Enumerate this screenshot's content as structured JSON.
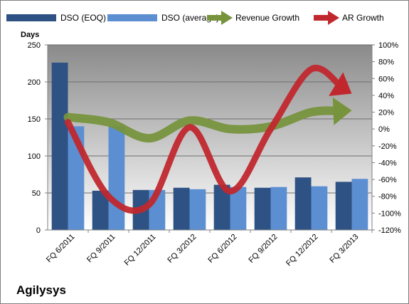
{
  "chart_data": {
    "type": "bar",
    "company": "Agilysys",
    "left_axis_title": "Days",
    "categories": [
      "FQ 6/2011",
      "FQ 9/2011",
      "FQ 12/2011",
      "FQ 3/2012",
      "FQ 6/2012",
      "FQ 9/2012",
      "FQ 12/2012",
      "FQ 3/2013"
    ],
    "left_ylim": [
      0,
      250
    ],
    "left_ticks": [
      "0",
      "50",
      "100",
      "150",
      "200",
      "250"
    ],
    "right_ylim": [
      -120,
      100
    ],
    "right_ticks": [
      "100%",
      "80%",
      "60%",
      "40%",
      "20%",
      "0%",
      "-20%",
      "-40%",
      "-60%",
      "-80%",
      "-100%",
      "-120%"
    ],
    "bar_series": [
      {
        "name": "DSO (EOQ)",
        "color": "#2e5283",
        "values": [
          226,
          53,
          54,
          57,
          61,
          57,
          71,
          65
        ]
      },
      {
        "name": "DSO (average)",
        "color": "#5b8fd2",
        "values": [
          140,
          140,
          54,
          55,
          58,
          58,
          59,
          69
        ]
      }
    ],
    "line_series": [
      {
        "name": "Revenue Growth",
        "color": "#77943d",
        "values": [
          14,
          8,
          -11,
          10,
          0,
          3,
          20,
          22
        ]
      },
      {
        "name": "AR Growth",
        "color": "#c0282e",
        "values": [
          8,
          -80,
          -90,
          2,
          -74,
          0,
          71,
          42
        ]
      }
    ],
    "grid": true,
    "legend_position": "top"
  }
}
